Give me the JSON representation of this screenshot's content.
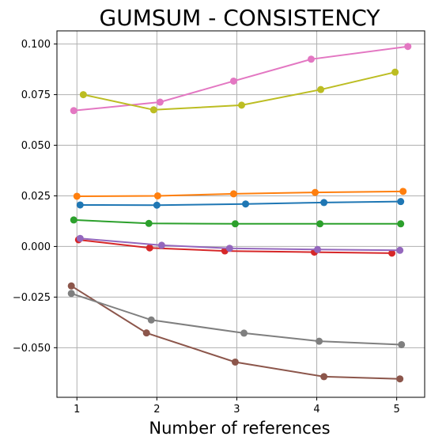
{
  "chart_data": {
    "type": "line",
    "title": "GUMSUM - CONSISTENCY",
    "xlabel": "Number of references",
    "ylabel": "",
    "xlim": [
      0.75,
      5.35
    ],
    "ylim": [
      -0.0745,
      0.1065
    ],
    "xticks": [
      1,
      2,
      3,
      4,
      5
    ],
    "xtick_labels": [
      "1",
      "2",
      "3",
      "4",
      "5"
    ],
    "yticks": [
      -0.05,
      -0.025,
      0.0,
      0.025,
      0.05,
      0.075,
      0.1
    ],
    "ytick_labels": [
      "−0.050",
      "−0.025",
      "0.000",
      "0.025",
      "0.050",
      "0.075",
      "0.100"
    ],
    "grid": true,
    "legend": "none",
    "series": [
      {
        "color": "#1f77b4",
        "x": [
          1.04,
          2.0,
          3.11,
          4.09,
          5.05
        ],
        "y": [
          0.0205,
          0.0204,
          0.021,
          0.0217,
          0.0222
        ]
      },
      {
        "color": "#ff7f0e",
        "x": [
          1.0,
          2.01,
          2.96,
          3.98,
          5.08
        ],
        "y": [
          0.0248,
          0.025,
          0.026,
          0.0267,
          0.0272
        ]
      },
      {
        "color": "#2ca02c",
        "x": [
          0.96,
          1.9,
          2.98,
          4.04,
          5.05
        ],
        "y": [
          0.0131,
          0.0114,
          0.0112,
          0.0112,
          0.0112
        ]
      },
      {
        "color": "#d62728",
        "x": [
          1.02,
          1.91,
          2.85,
          3.97,
          4.94
        ],
        "y": [
          0.0033,
          -0.0007,
          -0.0022,
          -0.0028,
          -0.0033
        ]
      },
      {
        "color": "#9467bd",
        "x": [
          1.04,
          2.06,
          2.91,
          4.01,
          5.04
        ],
        "y": [
          0.004,
          0.0006,
          -0.0009,
          -0.0015,
          -0.0019
        ]
      },
      {
        "color": "#8c564b",
        "x": [
          0.93,
          1.87,
          2.98,
          4.09,
          5.04
        ],
        "y": [
          -0.0195,
          -0.0427,
          -0.0571,
          -0.0643,
          -0.0654
        ]
      },
      {
        "color": "#e377c2",
        "x": [
          0.96,
          2.04,
          2.96,
          3.93,
          5.14
        ],
        "y": [
          0.0671,
          0.0713,
          0.0817,
          0.0925,
          0.0988
        ]
      },
      {
        "color": "#7f7f7f",
        "x": [
          0.93,
          1.93,
          3.09,
          4.03,
          5.06
        ],
        "y": [
          -0.0232,
          -0.0363,
          -0.0428,
          -0.0468,
          -0.0485
        ]
      },
      {
        "color": "#bcbd22",
        "x": [
          1.08,
          1.96,
          3.06,
          4.05,
          4.98
        ],
        "y": [
          0.075,
          0.0675,
          0.0698,
          0.0775,
          0.0861
        ]
      }
    ]
  }
}
